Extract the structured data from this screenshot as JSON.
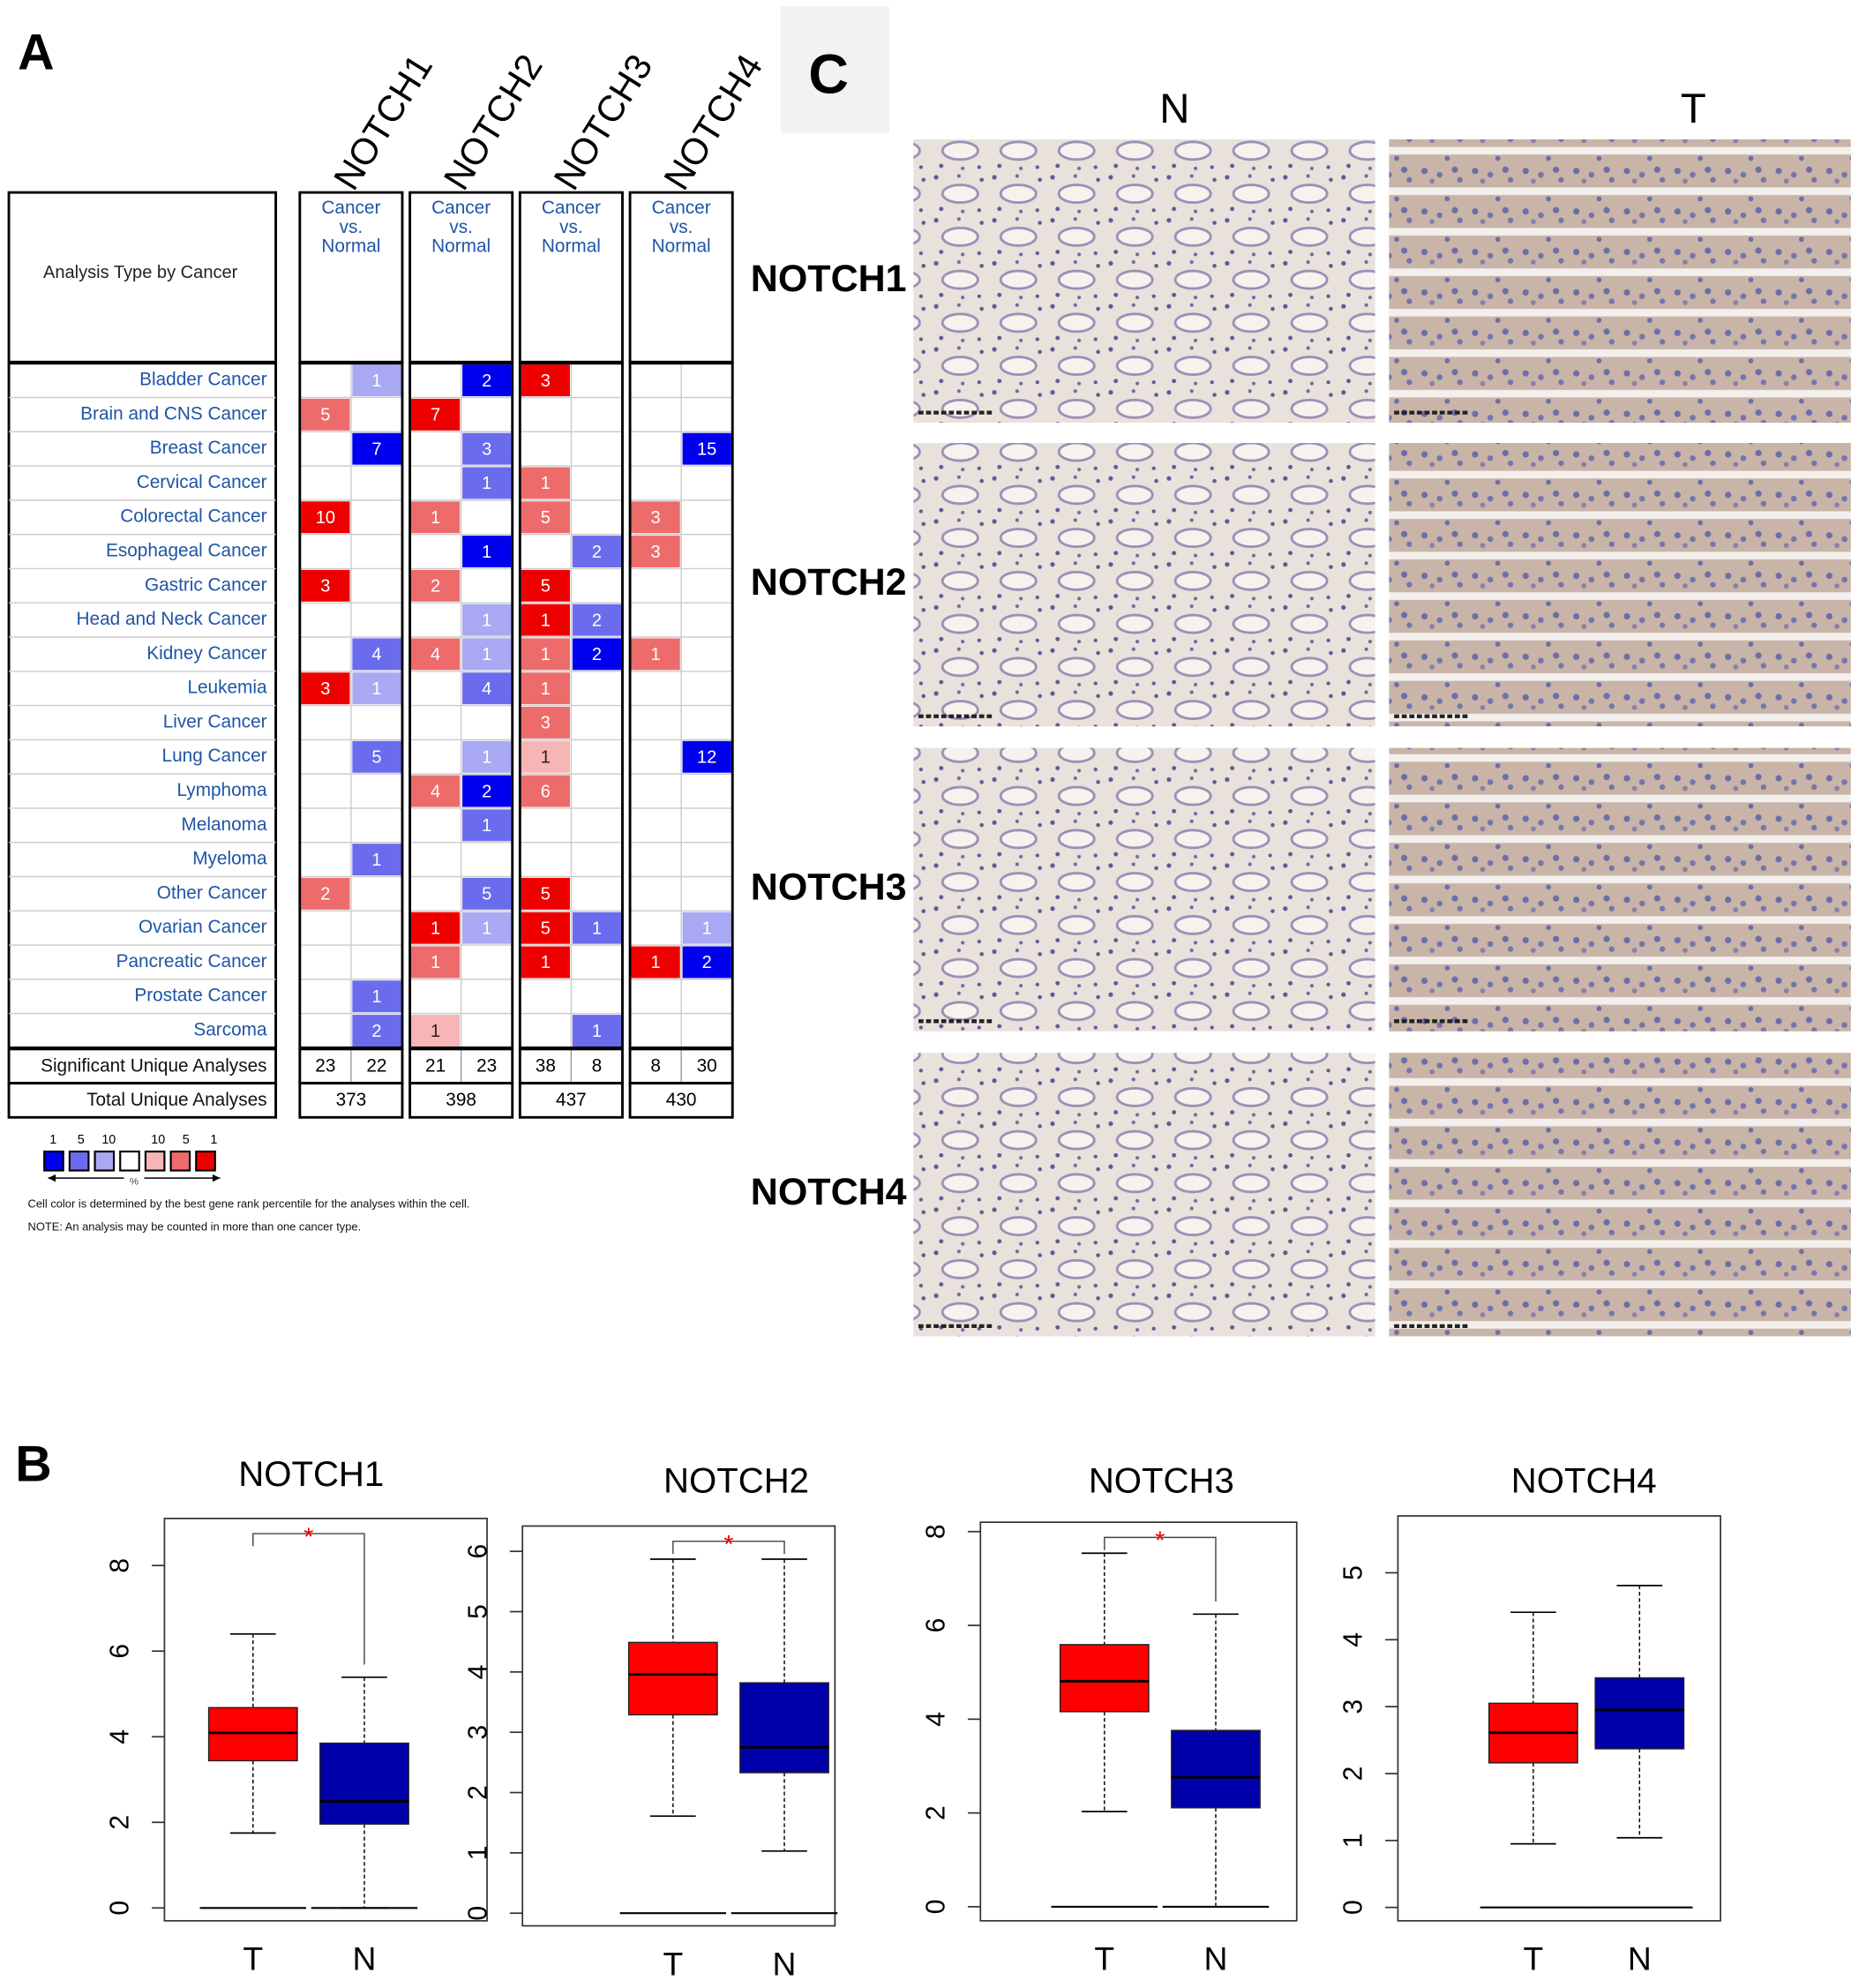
{
  "panel_labels": {
    "a": "A",
    "b": "B",
    "c": "C"
  },
  "heatmap": {
    "genes": [
      "NOTCH1",
      "NOTCH2",
      "NOTCH3",
      "NOTCH4"
    ],
    "row_header": "Analysis Type by Cancer",
    "column_header": [
      "Cancer",
      "vs.",
      "Normal"
    ],
    "rows": [
      {
        "name": "Bladder Cancer",
        "cells": [
          null,
          {
            "value": 1,
            "color": "#a8a8f3"
          },
          null,
          {
            "value": 2,
            "color": "#0000ee"
          },
          {
            "value": 3,
            "color": "#ee0000"
          },
          null,
          null,
          null
        ]
      },
      {
        "name": "Brain and CNS Cancer",
        "cells": [
          {
            "value": 5,
            "color": "#ee6b6b"
          },
          null,
          {
            "value": 7,
            "color": "#ee0000"
          },
          null,
          null,
          null,
          null,
          null
        ]
      },
      {
        "name": "Breast Cancer",
        "cells": [
          null,
          {
            "value": 7,
            "color": "#0000ee"
          },
          null,
          {
            "value": 3,
            "color": "#6b6bee"
          },
          null,
          null,
          null,
          {
            "value": 15,
            "color": "#0000ee"
          }
        ]
      },
      {
        "name": "Cervical Cancer",
        "cells": [
          null,
          null,
          null,
          {
            "value": 1,
            "color": "#6b6bee"
          },
          {
            "value": 1,
            "color": "#ee6b6b"
          },
          null,
          null,
          null
        ]
      },
      {
        "name": "Colorectal Cancer",
        "cells": [
          {
            "value": 10,
            "color": "#ee0000"
          },
          null,
          {
            "value": 1,
            "color": "#ee6b6b"
          },
          null,
          {
            "value": 5,
            "color": "#ee6b6b"
          },
          null,
          {
            "value": 3,
            "color": "#ee6b6b"
          },
          null
        ]
      },
      {
        "name": "Esophageal Cancer",
        "cells": [
          null,
          null,
          null,
          {
            "value": 1,
            "color": "#0000ee"
          },
          null,
          {
            "value": 2,
            "color": "#6b6bee"
          },
          {
            "value": 3,
            "color": "#ee6b6b"
          },
          null
        ]
      },
      {
        "name": "Gastric Cancer",
        "cells": [
          {
            "value": 3,
            "color": "#ee0000"
          },
          null,
          {
            "value": 2,
            "color": "#ee6b6b"
          },
          null,
          {
            "value": 5,
            "color": "#ee0000"
          },
          null,
          null,
          null
        ]
      },
      {
        "name": "Head and Neck Cancer",
        "cells": [
          null,
          null,
          null,
          {
            "value": 1,
            "color": "#a8a8f3"
          },
          {
            "value": 1,
            "color": "#ee0000"
          },
          {
            "value": 2,
            "color": "#6b6bee"
          },
          null,
          null
        ]
      },
      {
        "name": "Kidney Cancer",
        "cells": [
          null,
          {
            "value": 4,
            "color": "#6b6bee"
          },
          {
            "value": 4,
            "color": "#ee6b6b"
          },
          {
            "value": 1,
            "color": "#a8a8f3"
          },
          {
            "value": 1,
            "color": "#ee6b6b"
          },
          {
            "value": 2,
            "color": "#0000ee"
          },
          {
            "value": 1,
            "color": "#ee6b6b"
          },
          null
        ]
      },
      {
        "name": "Leukemia",
        "cells": [
          {
            "value": 3,
            "color": "#ee0000"
          },
          {
            "value": 1,
            "color": "#a8a8f3"
          },
          null,
          {
            "value": 4,
            "color": "#6b6bee"
          },
          {
            "value": 1,
            "color": "#ee6b6b"
          },
          null,
          null,
          null
        ]
      },
      {
        "name": "Liver Cancer",
        "cells": [
          null,
          null,
          null,
          null,
          {
            "value": 3,
            "color": "#ee6b6b"
          },
          null,
          null,
          null
        ]
      },
      {
        "name": "Lung Cancer",
        "cells": [
          null,
          {
            "value": 5,
            "color": "#6b6bee"
          },
          null,
          {
            "value": 1,
            "color": "#a8a8f3"
          },
          {
            "value": 1,
            "color": "#f7b5b5"
          },
          null,
          null,
          {
            "value": 12,
            "color": "#0000ee"
          }
        ]
      },
      {
        "name": "Lymphoma",
        "cells": [
          null,
          null,
          {
            "value": 4,
            "color": "#ee6b6b"
          },
          {
            "value": 2,
            "color": "#0000ee"
          },
          {
            "value": 6,
            "color": "#ee6b6b"
          },
          null,
          null,
          null
        ]
      },
      {
        "name": "Melanoma",
        "cells": [
          null,
          null,
          null,
          {
            "value": 1,
            "color": "#6b6bee"
          },
          null,
          null,
          null,
          null
        ]
      },
      {
        "name": "Myeloma",
        "cells": [
          null,
          {
            "value": 1,
            "color": "#6b6bee"
          },
          null,
          null,
          null,
          null,
          null,
          null
        ]
      },
      {
        "name": "Other Cancer",
        "cells": [
          {
            "value": 2,
            "color": "#ee6b6b"
          },
          null,
          null,
          {
            "value": 5,
            "color": "#6b6bee"
          },
          {
            "value": 5,
            "color": "#ee0000"
          },
          null,
          null,
          null
        ]
      },
      {
        "name": "Ovarian Cancer",
        "cells": [
          null,
          null,
          {
            "value": 1,
            "color": "#ee0000"
          },
          {
            "value": 1,
            "color": "#a8a8f3"
          },
          {
            "value": 5,
            "color": "#ee0000"
          },
          {
            "value": 1,
            "color": "#6b6bee"
          },
          null,
          {
            "value": 1,
            "color": "#a8a8f3"
          }
        ]
      },
      {
        "name": "Pancreatic Cancer",
        "cells": [
          null,
          null,
          {
            "value": 1,
            "color": "#ee6b6b"
          },
          null,
          {
            "value": 1,
            "color": "#ee0000"
          },
          null,
          {
            "value": 1,
            "color": "#ee0000"
          },
          {
            "value": 2,
            "color": "#0000ee"
          }
        ]
      },
      {
        "name": "Prostate Cancer",
        "cells": [
          null,
          {
            "value": 1,
            "color": "#6b6bee"
          },
          null,
          null,
          null,
          null,
          null,
          null
        ]
      },
      {
        "name": "Sarcoma",
        "cells": [
          null,
          {
            "value": 2,
            "color": "#6b6bee"
          },
          {
            "value": 1,
            "color": "#f7b5b5"
          },
          null,
          null,
          {
            "value": 1,
            "color": "#6b6bee"
          },
          null,
          null
        ]
      }
    ],
    "significant_label": "Significant Unique Analyses",
    "significant": [
      [
        23,
        22
      ],
      [
        21,
        23
      ],
      [
        38,
        8
      ],
      [
        8,
        30
      ]
    ],
    "total_label": "Total Unique Analyses",
    "total": [
      373,
      398,
      437,
      430
    ],
    "legend": {
      "colors": [
        "#0000ee",
        "#6b6bee",
        "#a8a8f3",
        "#ffffff",
        "#f7b5b5",
        "#ee6b6b",
        "#ee0000"
      ],
      "down_labels": [
        1,
        5,
        10
      ],
      "up_labels": [
        10,
        5,
        1
      ],
      "unit": "%"
    },
    "notes": [
      "Cell color is determined by the best gene rank percentile for the analyses within the cell.",
      "NOTE: An analysis may be counted in more than one cancer type."
    ]
  },
  "ihc": {
    "columns": [
      "N",
      "T"
    ],
    "rows": [
      "NOTCH1",
      "NOTCH2",
      "NOTCH3",
      "NOTCH4"
    ]
  },
  "chart_data": [
    {
      "type": "box",
      "title": "NOTCH1",
      "categories": [
        "T",
        "N"
      ],
      "ylim": [
        -0.3,
        9.1
      ],
      "yticks": [
        0,
        2,
        4,
        6,
        8
      ],
      "baseline": 0,
      "annotation": "*",
      "boxes": [
        {
          "color": "#ff0000",
          "whisker_low": 1.75,
          "q1": 3.44,
          "median": 4.09,
          "q3": 4.68,
          "whisker_high": 6.4
        },
        {
          "color": "#0000aa",
          "whisker_low": 0,
          "q1": 1.96,
          "median": 2.49,
          "q3": 3.85,
          "whisker_high": 5.39
        }
      ]
    },
    {
      "type": "box",
      "title": "NOTCH2",
      "categories": [
        "T",
        "N"
      ],
      "ylim": [
        -0.21,
        6.42
      ],
      "yticks": [
        0,
        1,
        2,
        3,
        4,
        5,
        6
      ],
      "baseline": 0,
      "annotation": "*",
      "boxes": [
        {
          "color": "#ff0000",
          "whisker_low": 1.61,
          "q1": 3.29,
          "median": 3.96,
          "q3": 4.49,
          "whisker_high": 5.87
        },
        {
          "color": "#0000aa",
          "whisker_low": 1.03,
          "q1": 2.33,
          "median": 2.75,
          "q3": 3.82,
          "whisker_high": 5.87
        }
      ]
    },
    {
      "type": "box",
      "title": "NOTCH3",
      "categories": [
        "T",
        "N"
      ],
      "ylim": [
        -0.3,
        8.2
      ],
      "yticks": [
        0,
        2,
        4,
        6,
        8
      ],
      "baseline": 0,
      "annotation": "*",
      "boxes": [
        {
          "color": "#ff0000",
          "whisker_low": 2.03,
          "q1": 4.16,
          "median": 4.81,
          "q3": 5.59,
          "whisker_high": 7.54
        },
        {
          "color": "#0000aa",
          "whisker_low": 0,
          "q1": 2.11,
          "median": 2.76,
          "q3": 3.76,
          "whisker_high": 6.24
        }
      ]
    },
    {
      "type": "box",
      "title": "NOTCH4",
      "categories": [
        "T",
        "N"
      ],
      "ylim": [
        -0.2,
        5.85
      ],
      "yticks": [
        0,
        1,
        2,
        3,
        4,
        5
      ],
      "baseline": 0,
      "boxes": [
        {
          "color": "#ff0000",
          "whisker_low": 0.95,
          "q1": 2.16,
          "median": 2.61,
          "q3": 3.05,
          "whisker_high": 4.41
        },
        {
          "color": "#0000aa",
          "whisker_low": 1.04,
          "q1": 2.37,
          "median": 2.95,
          "q3": 3.43,
          "whisker_high": 4.81
        }
      ]
    }
  ]
}
